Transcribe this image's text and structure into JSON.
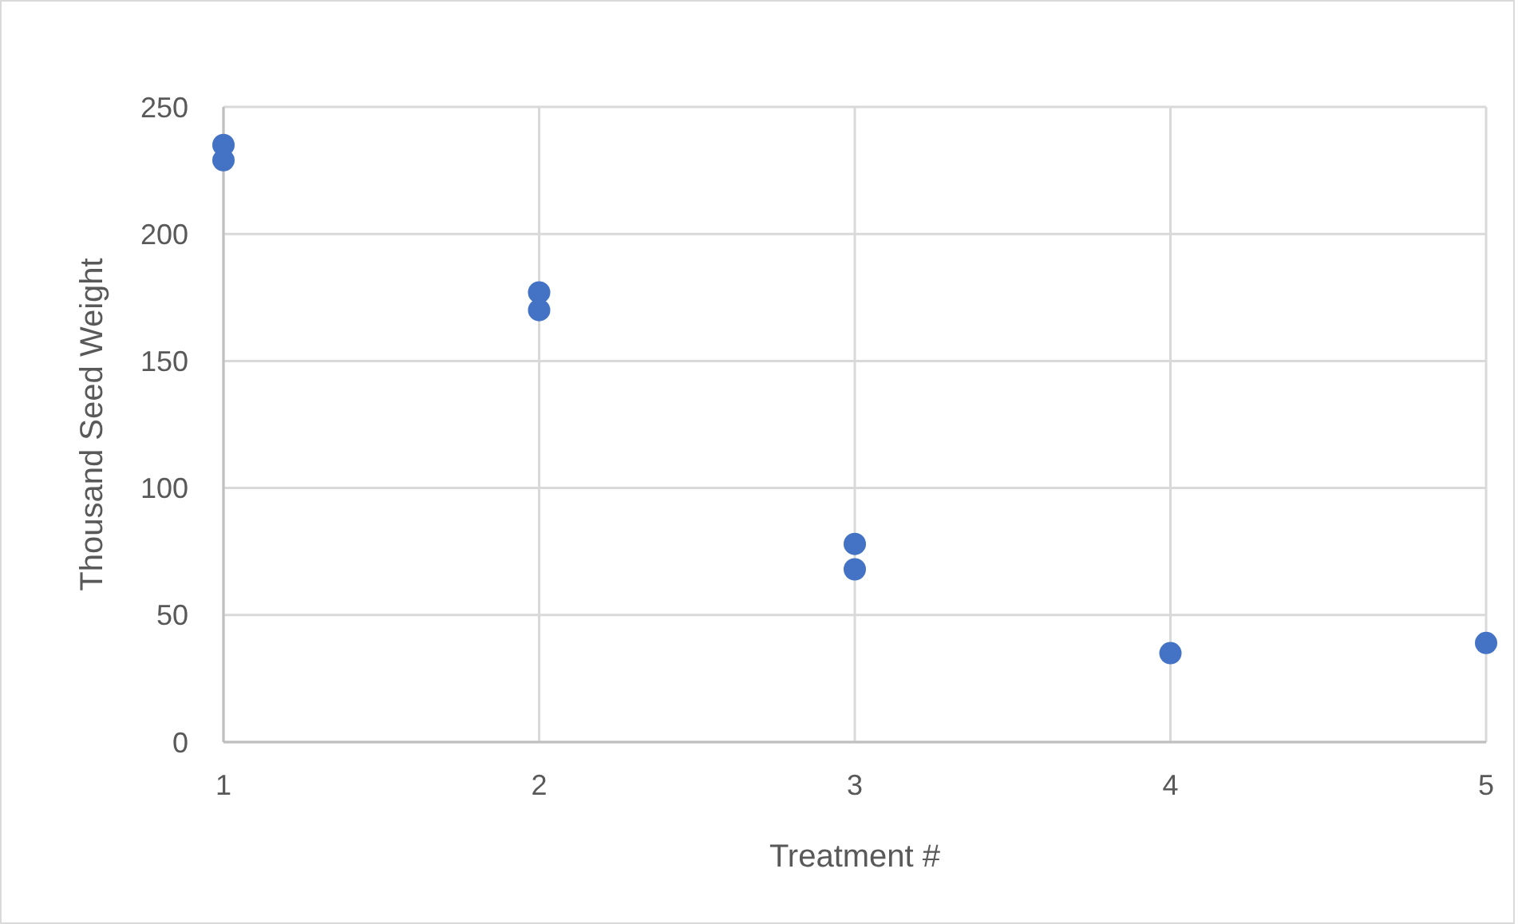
{
  "chart_data": {
    "type": "scatter",
    "xlabel": "Treatment #",
    "ylabel": "Thousand Seed Weight",
    "x": [
      1,
      1,
      2,
      2,
      3,
      3,
      4,
      5
    ],
    "values": [
      235,
      229,
      177,
      170,
      78,
      68,
      35,
      39
    ],
    "color": "#4472c4",
    "marker": "circle",
    "xlim": [
      1,
      5
    ],
    "xticks": [
      1,
      2,
      3,
      4,
      5
    ],
    "ylim": [
      0,
      250
    ],
    "yticks": [
      0,
      50,
      100,
      150,
      200,
      250
    ],
    "grid": true
  }
}
